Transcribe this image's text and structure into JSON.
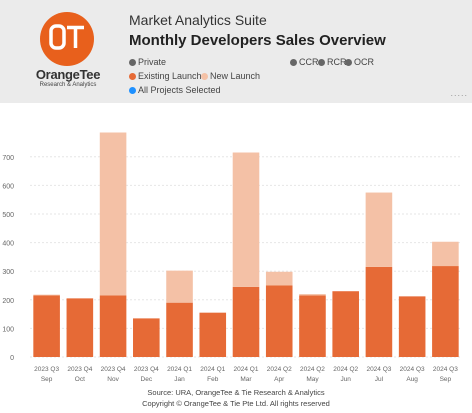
{
  "header": {
    "logo_name": "OrangeTee",
    "logo_sub": "Research & Analytics",
    "app_title": "Market Analytics Suite",
    "report_title": "Monthly Developers Sales Overview",
    "filters": {
      "private": "Private",
      "ccr": "CCR",
      "rcr": "RCR",
      "ocr": "OCR",
      "all_projects": "All Projects Selected"
    },
    "more_menu": "....."
  },
  "colors": {
    "existing": "#e66a36",
    "new": "#f4c1a6",
    "accent": "#e8601c",
    "filter_dot": "#666666",
    "all_projects_dot": "#1e90ff"
  },
  "footer": {
    "source": "Source: URA, OrangeTee & Tie Research & Analytics",
    "copyright": "Copyright © OrangeTee & Tie Pte Ltd. All rights reserved"
  },
  "chart_data": {
    "type": "bar",
    "stacked": true,
    "categories": [
      [
        "2023 Q3",
        "Sep"
      ],
      [
        "2023 Q4",
        "Oct"
      ],
      [
        "2023 Q4",
        "Nov"
      ],
      [
        "2023 Q4",
        "Dec"
      ],
      [
        "2024 Q1",
        "Jan"
      ],
      [
        "2024 Q1",
        "Feb"
      ],
      [
        "2024 Q1",
        "Mar"
      ],
      [
        "2024 Q2",
        "Apr"
      ],
      [
        "2024 Q2",
        "May"
      ],
      [
        "2024 Q2",
        "Jun"
      ],
      [
        "2024 Q3",
        "Jul"
      ],
      [
        "2024 Q3",
        "Aug"
      ],
      [
        "2024 Q3",
        "Sep"
      ]
    ],
    "series": [
      {
        "name": "Existing Launch",
        "values": [
          215,
          205,
          215,
          135,
          190,
          155,
          245,
          250,
          215,
          230,
          315,
          212,
          318
        ]
      },
      {
        "name": "New Launch",
        "values": [
          3,
          0,
          570,
          0,
          112,
          0,
          470,
          48,
          5,
          0,
          260,
          0,
          85
        ]
      }
    ],
    "yticks": [
      0,
      100,
      200,
      300,
      400,
      500,
      600,
      700
    ],
    "ylim": [
      0,
      790
    ],
    "grid": true,
    "legend": "top-left"
  }
}
